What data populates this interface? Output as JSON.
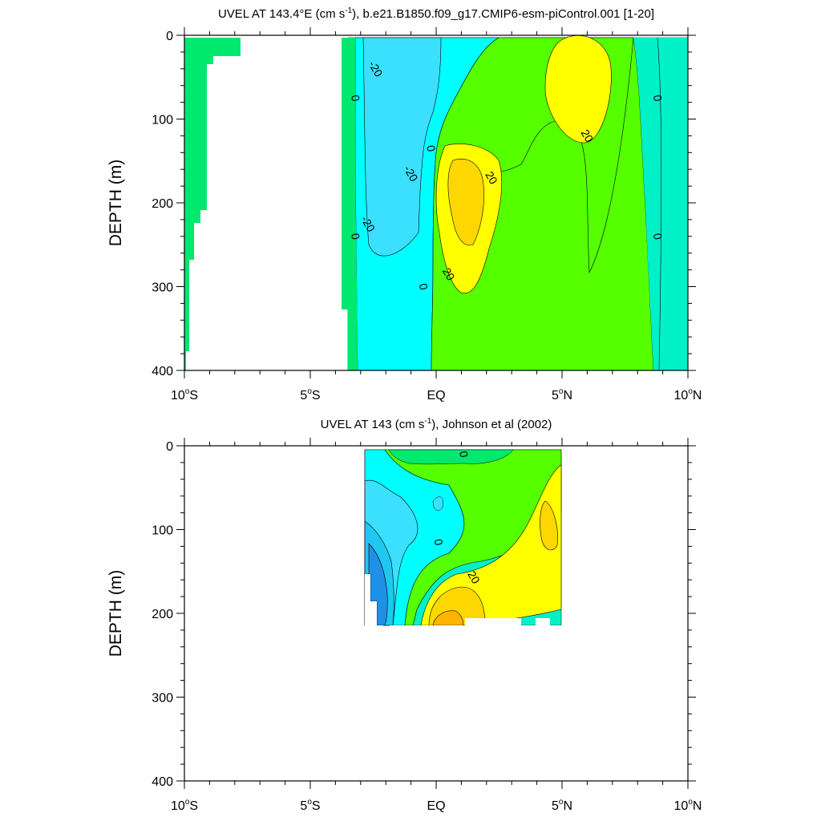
{
  "chart_data": [
    {
      "type": "contour",
      "title": "UVEL AT 143.4°E (cm s",
      "title_sup": "-1",
      "title_tail": "), b.e21.B1850.f09_g17.CMIP6-esm-piControl.001 [1-20]",
      "xlabel": "",
      "ylabel": "DEPTH (m)",
      "xlim": [
        -10,
        10
      ],
      "ylim": [
        400,
        0
      ],
      "x_ticks": [
        {
          "value": -10,
          "num": "10",
          "sup": "o",
          "hem": "S"
        },
        {
          "value": -5,
          "num": "5",
          "sup": "o",
          "hem": "S"
        },
        {
          "value": 0,
          "num": "EQ",
          "sup": "",
          "hem": ""
        },
        {
          "value": 5,
          "num": "5",
          "sup": "o",
          "hem": "N"
        },
        {
          "value": 10,
          "num": "10",
          "sup": "o",
          "hem": "N"
        }
      ],
      "y_ticks": [
        0,
        100,
        200,
        300,
        400
      ],
      "contour_labels": [
        {
          "text": "-20",
          "x": -2.4,
          "y": 40
        },
        {
          "text": "0",
          "x": -3.2,
          "y": 75
        },
        {
          "text": "0",
          "x": -0.2,
          "y": 135
        },
        {
          "text": "-20",
          "x": -1.0,
          "y": 165
        },
        {
          "text": "20",
          "x": 2.2,
          "y": 170
        },
        {
          "text": "-20",
          "x": -2.7,
          "y": 225
        },
        {
          "text": "0",
          "x": -3.2,
          "y": 240
        },
        {
          "text": "20",
          "x": 0.5,
          "y": 285
        },
        {
          "text": "0",
          "x": -0.5,
          "y": 300
        },
        {
          "text": "20",
          "x": 6.0,
          "y": 120
        },
        {
          "text": "0",
          "x": 8.8,
          "y": 75
        },
        {
          "text": "0",
          "x": 8.8,
          "y": 240
        }
      ]
    },
    {
      "type": "contour",
      "title": "UVEL AT 143 (cm s",
      "title_sup": "-1",
      "title_tail": "), Johnson et al (2002)",
      "xlabel": "",
      "ylabel": "DEPTH (m)",
      "xlim": [
        -10,
        10
      ],
      "ylim": [
        400,
        0
      ],
      "x_ticks": [
        {
          "value": -10,
          "num": "10",
          "sup": "o",
          "hem": "S"
        },
        {
          "value": -5,
          "num": "5",
          "sup": "o",
          "hem": "S"
        },
        {
          "value": 0,
          "num": "EQ",
          "sup": "",
          "hem": ""
        },
        {
          "value": 5,
          "num": "5",
          "sup": "o",
          "hem": "N"
        },
        {
          "value": 10,
          "num": "10",
          "sup": "o",
          "hem": "N"
        }
      ],
      "y_ticks": [
        0,
        100,
        200,
        300,
        400
      ],
      "contour_labels": [
        {
          "text": "0",
          "x": 1.1,
          "y": 10
        },
        {
          "text": "0",
          "x": 0.1,
          "y": 115
        },
        {
          "text": "20",
          "x": 1.5,
          "y": 157
        }
      ]
    }
  ],
  "colors": {
    "dark_blue": "#1e90e6",
    "blue": "#1ec8f0",
    "light_cyan": "#00ffff",
    "sky": "#3be0ff",
    "teal": "#00f0c8",
    "spring": "#00e86e",
    "green": "#55ff00",
    "yellow": "#ffff00",
    "gold": "#ffd700",
    "orange": "#ffb400"
  }
}
